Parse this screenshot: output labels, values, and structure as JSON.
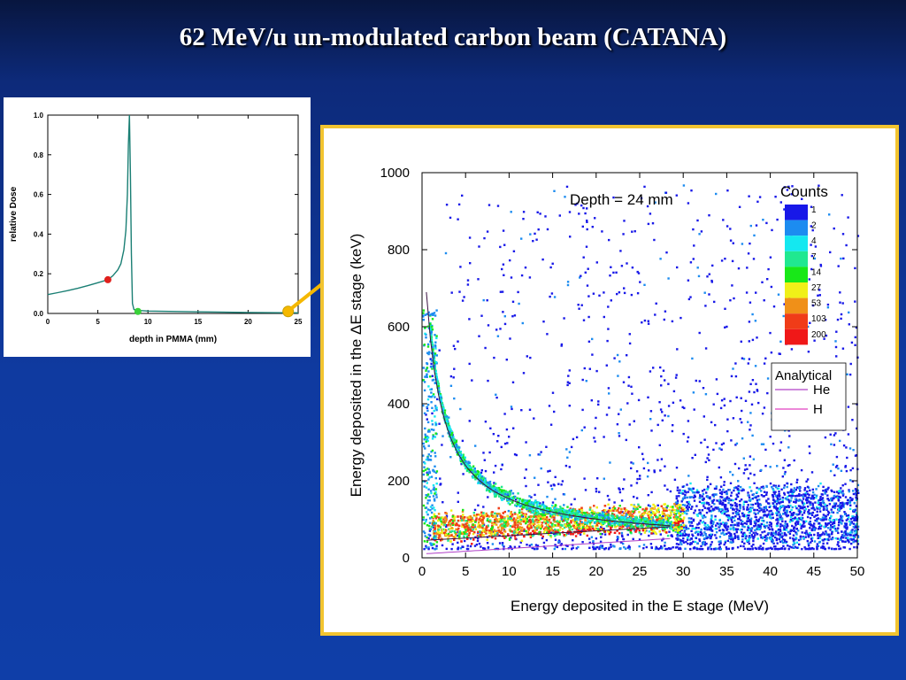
{
  "slide": {
    "title": "62 MeV/u un-modulated carbon beam (CATANA)"
  },
  "colors": {
    "accent_border": "#f2c430",
    "arrow": "#f5b800",
    "curve": "#1a7f74"
  },
  "chart_data": [
    {
      "type": "line",
      "title": "",
      "xlabel": "depth in PMMA (mm)",
      "ylabel": "relative Dose",
      "xlim": [
        0,
        25
      ],
      "ylim": [
        0,
        1.0
      ],
      "xticks": [
        "0",
        "5",
        "10",
        "15",
        "20",
        "25"
      ],
      "yticks": [
        "0.0",
        "0.2",
        "0.4",
        "0.6",
        "0.8",
        "1.0"
      ],
      "series": [
        {
          "x": [
            0,
            1,
            2,
            3,
            4,
            5,
            6,
            6.5,
            7,
            7.3,
            7.6,
            7.8,
            7.95,
            8.05,
            8.15,
            8.25,
            8.35,
            8.45,
            8.6,
            9,
            10,
            15,
            20,
            25
          ],
          "y": [
            0.095,
            0.105,
            0.115,
            0.127,
            0.14,
            0.155,
            0.17,
            0.19,
            0.22,
            0.25,
            0.32,
            0.42,
            0.6,
            0.85,
            1.0,
            0.7,
            0.3,
            0.05,
            0.02,
            0.015,
            0.012,
            0.008,
            0.005,
            0.003
          ]
        }
      ],
      "markers": [
        {
          "x": 6.0,
          "y": 0.17,
          "color": "#e0201c"
        },
        {
          "x": 9.0,
          "y": 0.01,
          "color": "#3ad13a"
        },
        {
          "x": 24.0,
          "y": 0.01,
          "color": "#f5b800"
        }
      ]
    },
    {
      "type": "heatmap",
      "title": "",
      "annotation": "Depth = 24 mm",
      "xlabel": "Energy deposited in the E stage (MeV)",
      "ylabel_prefix": "Energy deposited in the ",
      "ylabel_symbol": "Δ",
      "ylabel_suffix": "E  stage (keV)",
      "xlim": [
        0,
        50
      ],
      "ylim": [
        0,
        1000
      ],
      "xticks": [
        "0",
        "5",
        "10",
        "15",
        "20",
        "25",
        "30",
        "35",
        "40",
        "45",
        "50"
      ],
      "yticks": [
        "0",
        "200",
        "400",
        "600",
        "800",
        "1000"
      ],
      "legend": {
        "title": "Counts",
        "levels": [
          "1",
          "2",
          "4",
          "7",
          "14",
          "27",
          "53",
          "103",
          "200"
        ],
        "colors": [
          "#1818e8",
          "#1c8cf0",
          "#14e8f0",
          "#20e890",
          "#18e818",
          "#f0f018",
          "#f09018",
          "#f03c18",
          "#f01818"
        ]
      },
      "analytical": {
        "title": "Analytical",
        "entries": [
          {
            "name": "He",
            "color": "#b040c8"
          },
          {
            "name": "H",
            "color": "#e040c0"
          }
        ]
      }
    }
  ]
}
